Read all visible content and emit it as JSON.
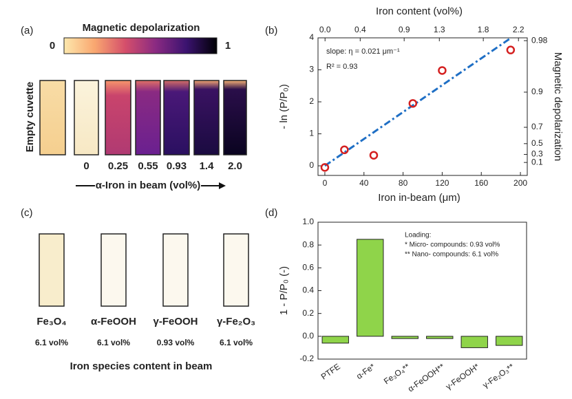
{
  "panel_a": {
    "panel_label": "(a)",
    "colorbar_title": "Magnetic depolarization",
    "colorbar_min": 0,
    "colorbar_max": 1,
    "empty_label": "Empty cuvette",
    "samples": [
      "0",
      "0.25",
      "0.55",
      "0.93",
      "1.4",
      "2.0"
    ],
    "axis_label": "α-Iron in beam (vol%)"
  },
  "panel_c": {
    "panel_label": "(c)",
    "species": [
      {
        "name": "Fe₃O₄",
        "content": "6.1 vol%"
      },
      {
        "name": "α-FeOOH",
        "content": "6.1 vol%"
      },
      {
        "name": "γ-FeOOH",
        "content": "0.93 vol%"
      },
      {
        "name": "γ-Fe₂O₃",
        "content": "6.1 vol%"
      }
    ],
    "caption": "Iron species content in beam"
  },
  "chart_data": [
    {
      "type": "scatter",
      "panel_label": "(b)",
      "xlabel": "Iron in-beam (μm)",
      "ylabel": "- ln (P/P₀)",
      "x2label": "Iron content (vol%)",
      "y2label": "Magnetic depolarization",
      "annotations": [
        "slope: η = 0.021 μm⁻¹",
        "R² = 0.93"
      ],
      "points": {
        "color": "#d42020",
        "x": [
          0,
          20,
          50,
          90,
          120,
          190
        ],
        "y": [
          -0.05,
          0.5,
          0.33,
          1.95,
          2.98,
          3.62
        ]
      },
      "fit": {
        "color": "#1f6fc5",
        "x": [
          0,
          190
        ],
        "y": [
          0,
          3.99
        ]
      },
      "xlim": [
        -7,
        207
      ],
      "xticks": [
        0,
        40,
        80,
        120,
        160,
        200
      ],
      "ylim": [
        -0.3,
        4
      ],
      "yticks": [
        0,
        1,
        2,
        3,
        4
      ],
      "x2lim": [
        -0.08,
        2.3
      ],
      "x2ticks": [
        {
          "value": 0,
          "label": "0.0"
        },
        0.4,
        0.9,
        1.3,
        1.8,
        2.2
      ],
      "y2scale": "depolarization",
      "y2ticks": [
        0.1,
        0.3,
        0.5,
        0.7,
        0.9,
        0.98
      ]
    },
    {
      "type": "bar",
      "panel_label": "(d)",
      "ylabel": "1 - P/P₀ (-)",
      "color": "#8fd44a",
      "categories": [
        "PTFE",
        "α-Fe*",
        "Fe₃O₄**",
        "α-FeOOH**",
        "γ-FeOOH*",
        "γ-Fe₂O₃**"
      ],
      "values": [
        -0.06,
        0.85,
        -0.02,
        -0.02,
        -0.1,
        -0.08
      ],
      "ylim": [
        -0.2,
        1.0
      ],
      "yticks": [
        -0.2,
        {
          "value": 0,
          "label": "0.0"
        },
        0.2,
        0.4,
        0.6,
        0.8,
        {
          "value": 1,
          "label": "1.0"
        }
      ],
      "notes": [
        "Loading:",
        "* Micro- compounds: 0.93 vol%",
        "** Nano- compounds: 6.1 vol%"
      ]
    }
  ]
}
